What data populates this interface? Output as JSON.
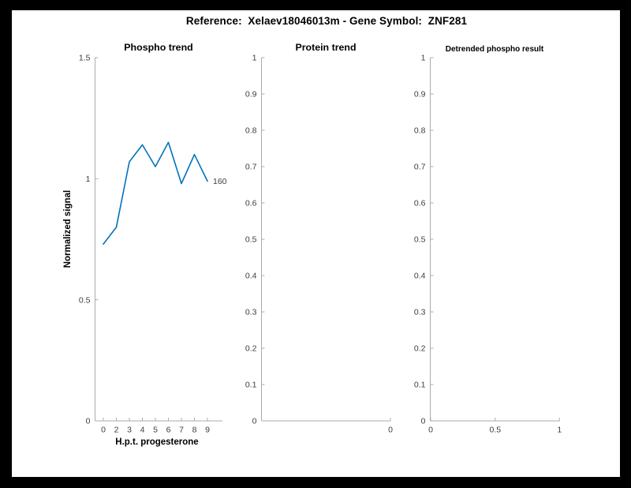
{
  "figure": {
    "title": "Reference:  Xelaev18046013m - Gene Symbol:  ZNF281"
  },
  "colors": {
    "background": "#ffffff",
    "frame": "#000000",
    "axis": "#ababab",
    "tick_label": "#3d3d3d",
    "text": "#000000",
    "series_blue": "#0072BD"
  },
  "chart_data": [
    {
      "type": "line",
      "title": "Phospho trend",
      "xlabel": "H.p.t. progesterone",
      "ylabel": "Normalized signal",
      "x_tick_labels": [
        "0",
        "2",
        "3",
        "4",
        "5",
        "6",
        "7",
        "8",
        "9"
      ],
      "x": [
        0,
        2,
        3,
        4,
        5,
        6,
        7,
        8,
        9
      ],
      "y_ticks": [
        0,
        0.5,
        1,
        1.5
      ],
      "y_tick_labels": [
        "0",
        "0.5",
        "1",
        "1.5"
      ],
      "ylim": [
        0,
        1.5
      ],
      "values": [
        0.73,
        0.8,
        1.07,
        1.14,
        1.05,
        1.15,
        0.98,
        1.1,
        0.99
      ],
      "end_label": "160",
      "grid": "off",
      "legend": "none"
    },
    {
      "type": "line",
      "title": "Protein trend",
      "xlabel": "",
      "ylabel": "",
      "x_tick_labels": [
        "0"
      ],
      "y_ticks": [
        0,
        0.1,
        0.2,
        0.3,
        0.4,
        0.5,
        0.6,
        0.7,
        0.8,
        0.9,
        1
      ],
      "y_tick_labels": [
        "0",
        "0.1",
        "0.2",
        "0.3",
        "0.4",
        "0.5",
        "0.6",
        "0.7",
        "0.8",
        "0.9",
        "1"
      ],
      "ylim": [
        0,
        1
      ],
      "values": [],
      "grid": "off",
      "legend": "none"
    },
    {
      "type": "line",
      "title": "Detrended phospho result",
      "xlabel": "",
      "ylabel": "",
      "x_tick_labels": [
        "0",
        "0.5",
        "1"
      ],
      "y_ticks": [
        0,
        0.1,
        0.2,
        0.3,
        0.4,
        0.5,
        0.6,
        0.7,
        0.8,
        0.9,
        1
      ],
      "y_tick_labels": [
        "0",
        "0.1",
        "0.2",
        "0.3",
        "0.4",
        "0.5",
        "0.6",
        "0.7",
        "0.8",
        "0.9",
        "1"
      ],
      "ylim": [
        0,
        1
      ],
      "values": [],
      "grid": "off",
      "legend": "none"
    }
  ]
}
